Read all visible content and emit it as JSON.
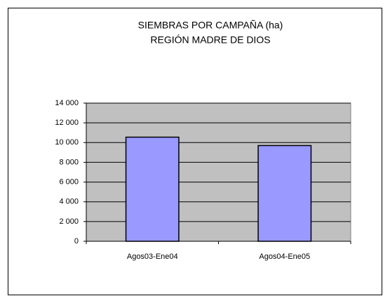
{
  "chart_data": {
    "type": "bar",
    "title": "SIEMBRAS POR CAMPAÑA (ha)",
    "subtitle": "REGIÓN MADRE DE DIOS",
    "categories": [
      "Agos03-Ene04",
      "Agos04-Ene05"
    ],
    "values": [
      10550,
      9700
    ],
    "color": "#9999ff",
    "ylim": [
      0,
      14000
    ],
    "yticks": [
      0,
      {
        "value": 2000,
        "label": "2 000"
      },
      {
        "value": 4000,
        "label": "4 000"
      },
      {
        "value": 6000,
        "label": "6 000"
      },
      {
        "value": 8000,
        "label": "8 000"
      },
      {
        "value": 10000,
        "label": "10 000"
      },
      {
        "value": 12000,
        "label": "12 000"
      },
      {
        "value": 14000,
        "label": "14 000"
      }
    ],
    "grid": true
  }
}
